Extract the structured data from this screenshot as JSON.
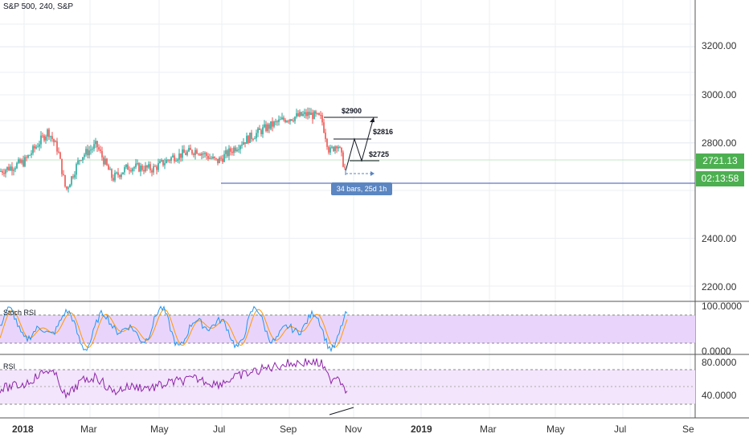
{
  "title": "S&P 500, 240, S&P",
  "price_axis": {
    "labels": [
      "3200.00",
      "3000.00",
      "2800.00",
      "2400.00",
      "2200.00"
    ],
    "last_price": "2721.13",
    "countdown": "02:13:58"
  },
  "time_axis": {
    "labels": [
      "2018",
      "Mar",
      "May",
      "Jul",
      "Sep",
      "Nov",
      "2019",
      "Mar",
      "May",
      "Jul",
      "Se"
    ]
  },
  "annotations": {
    "target_top": "$2900",
    "target_mid": "$2816",
    "target_low": "$2725",
    "range_label": "34 bars, 25d 1h"
  },
  "stoch_rsi": {
    "label": "Stoch RSI",
    "top_label": "100.0000",
    "bottom_label": "0.0000"
  },
  "rsi": {
    "label": "RSI",
    "top_label": "80.0000",
    "bottom_label": "40.0000"
  },
  "colors": {
    "up": "#26a69a",
    "down": "#ef5350",
    "price_tag": "#4caf50",
    "band_fill": "#e9d5fb",
    "rsi_line": "#8e24aa",
    "stoch_k": "#2196f3",
    "stoch_d": "#ff9800"
  }
}
